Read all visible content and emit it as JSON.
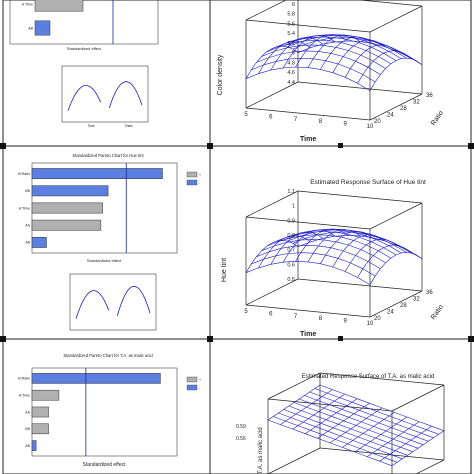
{
  "colors": {
    "bar": "#5b7fe0",
    "bar_gray": "#b0b0b0",
    "surface": "#1e1ec8",
    "refline": "#1a2a9a",
    "frame": "#222222"
  },
  "chart_data": [
    {
      "type": "bar",
      "orientation": "horizontal",
      "panel": "row1-left",
      "title": "",
      "categories": [
        "",
        "A:Time",
        "AB"
      ],
      "values": [
        1.0,
        1.6,
        0.5
      ],
      "bar_colors": [
        "blue",
        "gray",
        "blue"
      ],
      "reference_line": 2.6,
      "xlim": [
        0,
        4
      ],
      "xlabel": "Standardized effect"
    },
    {
      "type": "line",
      "panel": "row1-left-effects",
      "x_categories": [
        "Time",
        "Ratio"
      ],
      "series": [
        {
          "x": [
            0,
            0.5,
            1
          ],
          "y": [
            0.2,
            0.65,
            0.35
          ]
        },
        {
          "x": [
            0,
            0.5,
            1
          ],
          "y": [
            0.25,
            0.72,
            0.3
          ]
        }
      ]
    },
    {
      "type": "surface",
      "panel": "row1-right",
      "title": "",
      "xlabel": "Time",
      "ylabel": "Ratio",
      "zlabel": "Color density",
      "x_ticks": [
        "5",
        "6",
        "7",
        "8",
        "9",
        "10"
      ],
      "y_ticks": [
        "20",
        "24",
        "28",
        "32",
        "36"
      ],
      "z_ticks": [
        "4.4",
        "4.6",
        "4.8",
        "5",
        "5.2",
        "5.4",
        "5.6",
        "5.8",
        "6",
        "6.2"
      ],
      "zlim": [
        4.4,
        6.2
      ],
      "z_center": 5.7,
      "z_edge": 5.0
    },
    {
      "type": "bar",
      "orientation": "horizontal",
      "panel": "row2-left",
      "title": "Standardized Pareto Chart for Hue tint",
      "categories": [
        "B:Ratio",
        "BB",
        "A:Time",
        "AA",
        "AB"
      ],
      "values": [
        3.6,
        2.1,
        1.95,
        1.9,
        0.4
      ],
      "bar_colors": [
        "blue",
        "blue",
        "gray",
        "gray",
        "blue"
      ],
      "legend": [
        "+",
        "-"
      ],
      "reference_line": 2.6,
      "xlim": [
        0,
        4
      ],
      "xlabel": "Standardized effect"
    },
    {
      "type": "line",
      "panel": "row2-left-effects",
      "series": [
        {
          "x": [
            0,
            0.5,
            1
          ],
          "y": [
            0.2,
            0.7,
            0.35
          ]
        },
        {
          "x": [
            0,
            0.5,
            1
          ],
          "y": [
            0.25,
            0.78,
            0.3
          ]
        }
      ]
    },
    {
      "type": "surface",
      "panel": "row2-right",
      "title": "Estimated Response Surface of Hue tint",
      "xlabel": "Time",
      "ylabel": "Ratio",
      "zlabel": "Hue tint",
      "x_ticks": [
        "5",
        "6",
        "7",
        "8",
        "9",
        "10"
      ],
      "y_ticks": [
        "20",
        "24",
        "28",
        "32",
        "36"
      ],
      "z_ticks": [
        "0.5",
        "0.6",
        "0.7",
        "0.8",
        "0.9",
        "1",
        "1.1"
      ],
      "zlim": [
        0.5,
        1.1
      ],
      "z_center": 0.95,
      "z_edge": 0.72
    },
    {
      "type": "bar",
      "orientation": "horizontal",
      "panel": "row3-left",
      "title": "Standardized Pareto Chart for T.A. as malic acid",
      "categories": [
        "B:Ratio",
        "A:Time",
        "AA",
        "BB",
        "AB"
      ],
      "values": [
        6.2,
        1.3,
        0.8,
        0.8,
        0.2
      ],
      "bar_colors": [
        "blue",
        "gray",
        "gray",
        "gray",
        "blue"
      ],
      "legend": [
        "+",
        "-"
      ],
      "reference_line": 2.6,
      "xlim": [
        0,
        7
      ],
      "xlabel": "Standardized effect"
    },
    {
      "type": "surface",
      "panel": "row3-right",
      "title": "Estimated Response Surface of T.A. as malic acid",
      "zlabel": "T.A. as malic acid",
      "z_ticks": [
        "0.59",
        "0.56"
      ]
    }
  ]
}
